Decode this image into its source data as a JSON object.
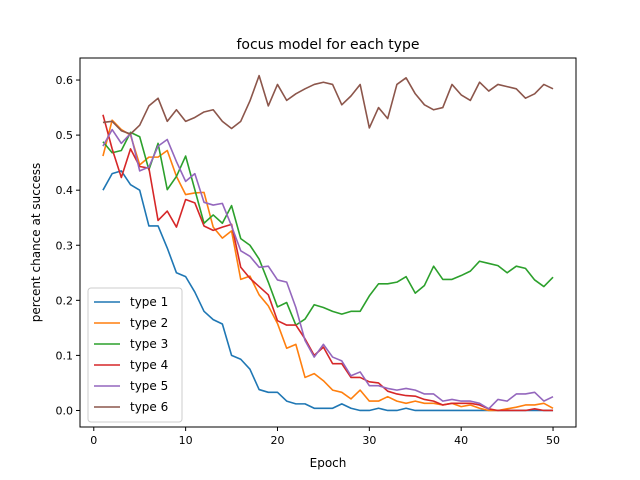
{
  "chart_data": {
    "type": "line",
    "title": "focus model for each type",
    "xlabel": "Epoch",
    "ylabel": "percent chance at success",
    "xlim": [
      -1.5,
      52.5
    ],
    "ylim": [
      -0.03,
      0.64
    ],
    "xticks": [
      0,
      10,
      20,
      30,
      40,
      50
    ],
    "yticks": [
      0.0,
      0.1,
      0.2,
      0.3,
      0.4,
      0.5,
      0.6
    ],
    "ytick_labels": [
      "0.0",
      "0.1",
      "0.2",
      "0.3",
      "0.4",
      "0.5",
      "0.6"
    ],
    "grid": false,
    "legend_position": "lower-left",
    "x": [
      1,
      2,
      3,
      4,
      5,
      6,
      7,
      8,
      9,
      10,
      11,
      12,
      13,
      14,
      15,
      16,
      17,
      18,
      19,
      20,
      21,
      22,
      23,
      24,
      25,
      26,
      27,
      28,
      29,
      30,
      31,
      32,
      33,
      34,
      35,
      36,
      37,
      38,
      39,
      40,
      41,
      42,
      43,
      44,
      45,
      46,
      47,
      48,
      49,
      50
    ],
    "series": [
      {
        "name": "type 1",
        "color": "#1f77b4",
        "values": [
          0.4,
          0.43,
          0.435,
          0.41,
          0.4,
          0.335,
          0.335,
          0.295,
          0.25,
          0.243,
          0.215,
          0.18,
          0.165,
          0.157,
          0.1,
          0.093,
          0.075,
          0.038,
          0.033,
          0.033,
          0.017,
          0.012,
          0.012,
          0.004,
          0.004,
          0.004,
          0.012,
          0.004,
          0.0,
          0.0,
          0.004,
          0.0,
          0.0,
          0.004,
          0.0,
          0.0,
          0.0,
          0.0,
          0.0,
          0.0,
          0.0,
          0.0,
          0.0,
          0.0,
          0.0,
          0.0,
          0.0,
          0.0,
          0.0,
          0.0
        ]
      },
      {
        "name": "type 2",
        "color": "#ff7f0e",
        "values": [
          0.462,
          0.527,
          0.51,
          0.5,
          0.446,
          0.46,
          0.46,
          0.472,
          0.425,
          0.392,
          0.395,
          0.396,
          0.333,
          0.313,
          0.326,
          0.238,
          0.244,
          0.21,
          0.19,
          0.158,
          0.113,
          0.12,
          0.06,
          0.067,
          0.054,
          0.037,
          0.033,
          0.021,
          0.037,
          0.017,
          0.017,
          0.025,
          0.017,
          0.013,
          0.017,
          0.013,
          0.013,
          0.01,
          0.013,
          0.007,
          0.01,
          0.004,
          0.0,
          0.0,
          0.003,
          0.006,
          0.01,
          0.01,
          0.013,
          0.004
        ]
      },
      {
        "name": "type 3",
        "color": "#2ca02c",
        "values": [
          0.488,
          0.468,
          0.472,
          0.505,
          0.497,
          0.437,
          0.485,
          0.401,
          0.425,
          0.462,
          0.401,
          0.34,
          0.355,
          0.34,
          0.372,
          0.312,
          0.3,
          0.275,
          0.233,
          0.188,
          0.196,
          0.155,
          0.166,
          0.192,
          0.187,
          0.18,
          0.175,
          0.18,
          0.18,
          0.208,
          0.23,
          0.23,
          0.233,
          0.243,
          0.213,
          0.227,
          0.262,
          0.238,
          0.238,
          0.245,
          0.253,
          0.271,
          0.267,
          0.263,
          0.25,
          0.262,
          0.258,
          0.237,
          0.225,
          0.242
        ]
      },
      {
        "name": "type 4",
        "color": "#d62728",
        "values": [
          0.537,
          0.475,
          0.423,
          0.475,
          0.443,
          0.44,
          0.345,
          0.362,
          0.333,
          0.383,
          0.377,
          0.335,
          0.327,
          0.333,
          0.338,
          0.26,
          0.24,
          0.225,
          0.21,
          0.163,
          0.155,
          0.155,
          0.13,
          0.1,
          0.115,
          0.085,
          0.085,
          0.06,
          0.06,
          0.052,
          0.05,
          0.035,
          0.03,
          0.027,
          0.026,
          0.02,
          0.017,
          0.01,
          0.013,
          0.013,
          0.013,
          0.01,
          0.003,
          0.0,
          0.0,
          0.0,
          0.0,
          0.003,
          0.0,
          0.0
        ]
      },
      {
        "name": "type 5",
        "color": "#9467bd",
        "values": [
          0.48,
          0.51,
          0.485,
          0.503,
          0.435,
          0.442,
          0.48,
          0.492,
          0.452,
          0.416,
          0.43,
          0.378,
          0.373,
          0.376,
          0.335,
          0.29,
          0.28,
          0.26,
          0.262,
          0.237,
          0.233,
          0.187,
          0.127,
          0.097,
          0.12,
          0.097,
          0.09,
          0.063,
          0.07,
          0.045,
          0.045,
          0.04,
          0.037,
          0.04,
          0.037,
          0.03,
          0.03,
          0.017,
          0.02,
          0.017,
          0.017,
          0.013,
          0.003,
          0.02,
          0.017,
          0.03,
          0.03,
          0.033,
          0.017,
          0.025
        ]
      },
      {
        "name": "type 6",
        "color": "#8c564b",
        "values": [
          0.523,
          0.525,
          0.508,
          0.502,
          0.518,
          0.553,
          0.567,
          0.525,
          0.546,
          0.525,
          0.532,
          0.542,
          0.546,
          0.525,
          0.512,
          0.525,
          0.562,
          0.608,
          0.553,
          0.592,
          0.563,
          0.575,
          0.584,
          0.592,
          0.596,
          0.592,
          0.555,
          0.571,
          0.592,
          0.513,
          0.55,
          0.53,
          0.592,
          0.604,
          0.575,
          0.555,
          0.546,
          0.55,
          0.592,
          0.573,
          0.563,
          0.596,
          0.58,
          0.592,
          0.588,
          0.584,
          0.567,
          0.575,
          0.592,
          0.584
        ]
      }
    ]
  }
}
